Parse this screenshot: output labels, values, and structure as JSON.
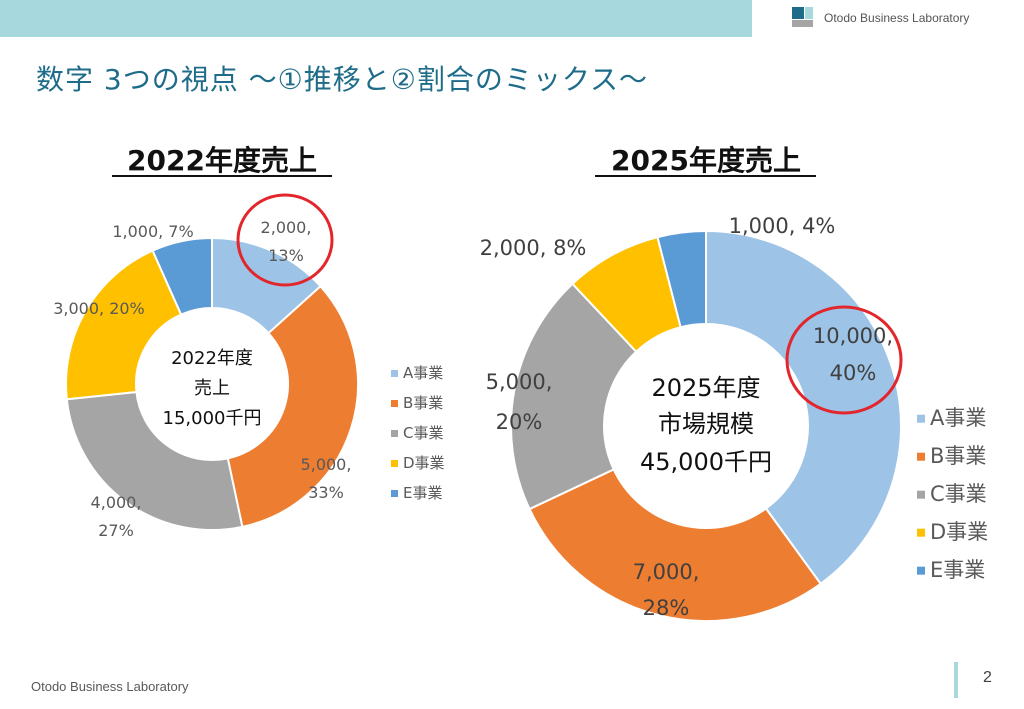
{
  "header": {
    "brand_text": "Otodo Business Laboratory"
  },
  "page": {
    "title": "数字 3つの視点 ～①推移と②割合のミックス～",
    "footer": "Otodo Business Laboratory",
    "page_number": "2"
  },
  "chart_data": [
    {
      "type": "pie",
      "title": "2022年度売上",
      "center_text": [
        "2022年度",
        "売上",
        "15,000千円"
      ],
      "categories": [
        "A事業",
        "B事業",
        "C事業",
        "D事業",
        "E事業"
      ],
      "values": [
        2000,
        5000,
        4000,
        3000,
        1000
      ],
      "data_labels": [
        [
          "2,000,",
          "13%"
        ],
        [
          "5,000,",
          "33%"
        ],
        [
          "4,000,",
          "27%"
        ],
        [
          "3,000, 20%"
        ],
        [
          "1,000, 7%"
        ]
      ],
      "colors": [
        "#9dc3e6",
        "#ed7d31",
        "#a5a5a5",
        "#ffc000",
        "#5b9bd5"
      ],
      "legend_position": "right",
      "highlight": "A事業"
    },
    {
      "type": "pie",
      "title": "2025年度売上",
      "center_text": [
        "2025年度",
        "市場規模",
        "45,000千円"
      ],
      "categories": [
        "A事業",
        "B事業",
        "C事業",
        "D事業",
        "E事業"
      ],
      "values": [
        10000,
        7000,
        5000,
        2000,
        1000
      ],
      "data_labels": [
        [
          "10,000,",
          "40%"
        ],
        [
          "7,000,",
          "28%"
        ],
        [
          "5,000,",
          "20%"
        ],
        [
          "2,000, 8%"
        ],
        [
          "1,000, 4%"
        ]
      ],
      "colors": [
        "#9dc3e6",
        "#ed7d31",
        "#a5a5a5",
        "#ffc000",
        "#5b9bd5"
      ],
      "legend_position": "right",
      "highlight": "A事業"
    }
  ]
}
